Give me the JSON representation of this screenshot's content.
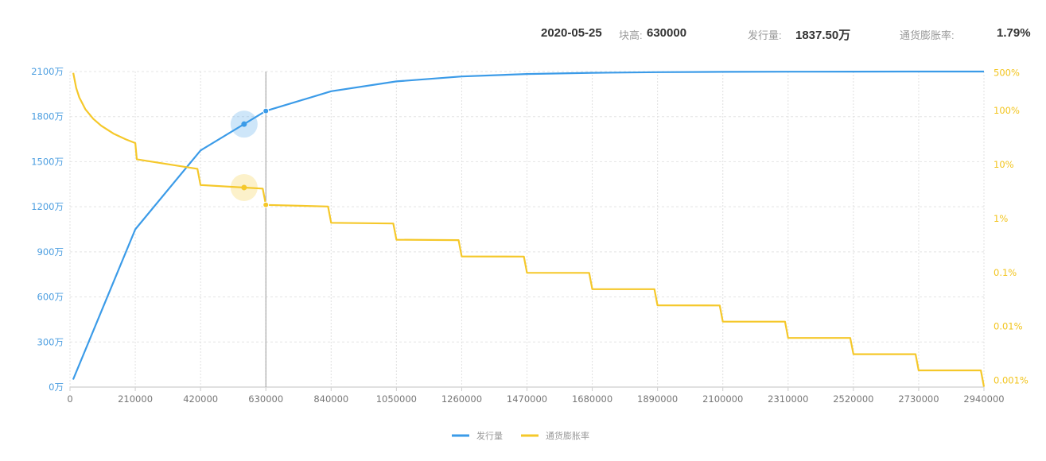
{
  "header": {
    "date": "2020-05-25",
    "height_label": "块高:",
    "height_value": "630000",
    "supply_label": "发行量:",
    "supply_value": "1837.50万",
    "inflation_label": "通货膨胀率:",
    "inflation_value": "1.79%"
  },
  "chart_data": {
    "type": "line",
    "colors": {
      "supply": "#3b9be8",
      "inflation": "#f5c82a",
      "left_axis": "#4a9de0",
      "right_axis": "#f2c41c"
    },
    "x_ticks": [
      "0",
      "210000",
      "420000",
      "630000",
      "840000",
      "1050000",
      "1260000",
      "1470000",
      "1680000",
      "1890000",
      "2100000",
      "2310000",
      "2520000",
      "2730000",
      "2940000"
    ],
    "xlim": [
      0,
      2940000
    ],
    "y_left": {
      "unit": "万",
      "ylim": [
        0,
        2100
      ],
      "ticks": [
        "0万",
        "300万",
        "600万",
        "900万",
        "1200万",
        "1500万",
        "1800万",
        "2100万"
      ]
    },
    "y_right": {
      "scale": "log",
      "ylim": [
        0.00075,
        530
      ],
      "ticks": [
        {
          "v": 0.001,
          "label": "0.001%"
        },
        {
          "v": 0.01,
          "label": "0.01%"
        },
        {
          "v": 0.1,
          "label": "0.1%"
        },
        {
          "v": 1,
          "label": "1%"
        },
        {
          "v": 10,
          "label": "10%"
        },
        {
          "v": 100,
          "label": "100%"
        },
        {
          "v": 500,
          "label": "500%"
        }
      ]
    },
    "grid": true,
    "legend_position": "bottom",
    "series": [
      {
        "name": "发行量",
        "axis": "left",
        "points": [
          [
            10000,
            50
          ],
          [
            210000,
            1050
          ],
          [
            420000,
            1575
          ],
          [
            630000,
            1837.5
          ],
          [
            840000,
            1968.75
          ],
          [
            1050000,
            2034.375
          ],
          [
            1260000,
            2067.1875
          ],
          [
            1470000,
            2083.59
          ],
          [
            1680000,
            2091.8
          ],
          [
            1890000,
            2095.9
          ],
          [
            2100000,
            2097.95
          ],
          [
            2310000,
            2098.97
          ],
          [
            2520000,
            2099.49
          ],
          [
            2730000,
            2099.74
          ],
          [
            2940000,
            2099.87
          ]
        ]
      },
      {
        "name": "通货膨胀率",
        "axis": "right",
        "points": [
          [
            10512,
            500
          ],
          [
            20000,
            262.8
          ],
          [
            30000,
            175.2
          ],
          [
            50000,
            105.1
          ],
          [
            75000,
            70.1
          ],
          [
            100000,
            52.6
          ],
          [
            140000,
            37.5
          ],
          [
            180000,
            29.2
          ],
          [
            210000,
            25.0
          ],
          [
            215000,
            12.51
          ],
          [
            410000,
            8.34
          ],
          [
            420000,
            4.17
          ],
          [
            620000,
            3.58
          ],
          [
            630000,
            1.788
          ],
          [
            830000,
            1.669
          ],
          [
            840000,
            0.834
          ],
          [
            1040000,
            0.807
          ],
          [
            1050000,
            0.4037
          ],
          [
            1250000,
            0.3973
          ],
          [
            1260000,
            0.1986
          ],
          [
            1460000,
            0.1971
          ],
          [
            1470000,
            0.09854
          ],
          [
            1670000,
            0.09815
          ],
          [
            1680000,
            0.04908
          ],
          [
            1880000,
            0.04898
          ],
          [
            1890000,
            0.02449
          ],
          [
            2090000,
            0.02447
          ],
          [
            2100000,
            0.012233
          ],
          [
            2300000,
            0.012227
          ],
          [
            2310000,
            0.006113
          ],
          [
            2510000,
            0.006112
          ],
          [
            2520000,
            0.003056
          ],
          [
            2720000,
            0.003056
          ],
          [
            2730000,
            0.001528
          ],
          [
            2930000,
            0.001528
          ],
          [
            2940000,
            0.00076
          ]
        ]
      }
    ],
    "cursor": {
      "x": 630000,
      "supply": 1837.5,
      "inflation": 1.788
    },
    "highlight": {
      "x": 560000,
      "supply": 1750,
      "inflation": 3.75
    }
  }
}
